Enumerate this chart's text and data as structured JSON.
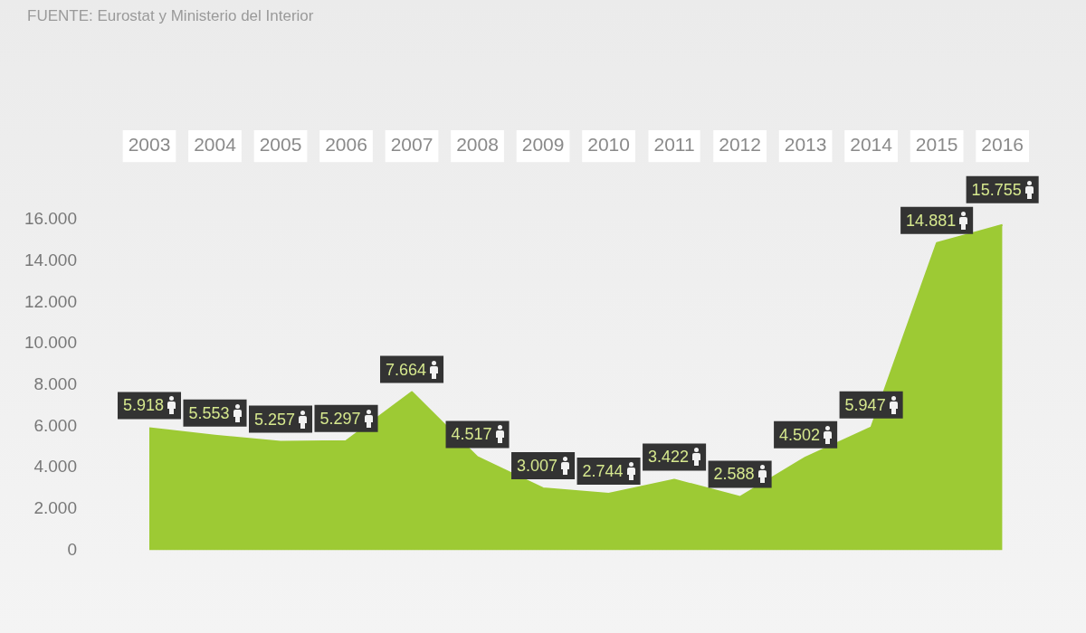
{
  "chart_data": {
    "type": "area",
    "annotations": [
      "FUENTE: Eurostat y Ministerio del Interior"
    ],
    "categories": [
      "2003",
      "2004",
      "2005",
      "2006",
      "2007",
      "2008",
      "2009",
      "2010",
      "2011",
      "2012",
      "2013",
      "2014",
      "2015",
      "2016"
    ],
    "values": [
      5918,
      5553,
      5257,
      5297,
      7664,
      4517,
      3007,
      2744,
      3422,
      2588,
      4502,
      5947,
      14881,
      15755
    ],
    "value_labels": [
      "5.918",
      "5.553",
      "5.257",
      "5.297",
      "7.664",
      "4.517",
      "3.007",
      "2.744",
      "3.422",
      "2.588",
      "4.502",
      "5.947",
      "14.881",
      "15.755"
    ],
    "color": "#9dca34",
    "ylim": [
      0,
      16000
    ],
    "yticks": [
      0,
      {
        "value": 2000,
        "label": "2.000"
      },
      {
        "value": 4000,
        "label": "4.000"
      },
      {
        "value": 6000,
        "label": "6.000"
      },
      {
        "value": 8000,
        "label": "8.000"
      },
      {
        "value": 10000,
        "label": "10.000"
      },
      {
        "value": 12000,
        "label": "12.000"
      },
      {
        "value": 14000,
        "label": "14.000"
      },
      {
        "value": 16000,
        "label": "16.000"
      }
    ],
    "grid": false,
    "legend": false
  }
}
